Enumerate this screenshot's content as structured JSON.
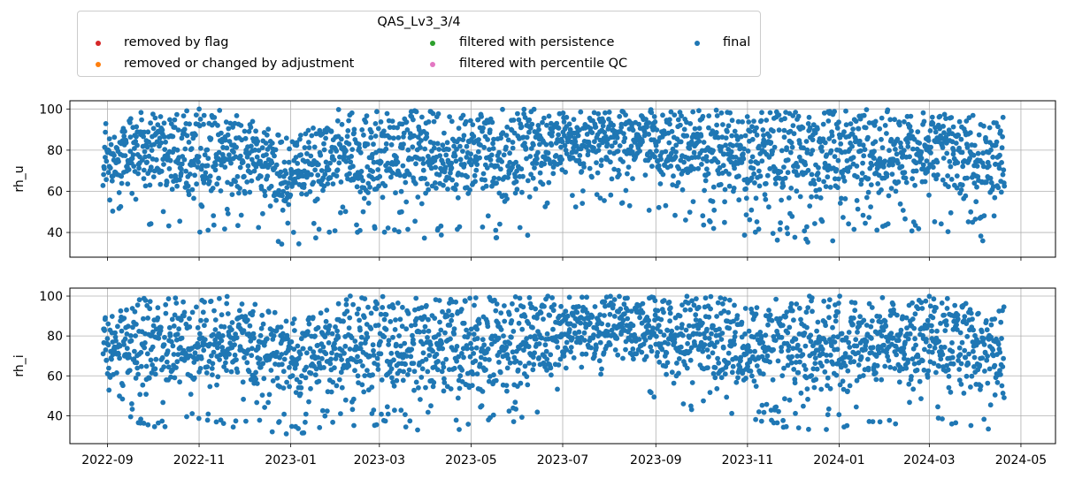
{
  "legend": {
    "title": "QAS_Lv3_3/4",
    "entries": [
      {
        "label": "removed by flag",
        "color": "#d62728"
      },
      {
        "label": "removed or changed by adjustment",
        "color": "#ff7f0e"
      },
      {
        "label": "filtered with persistence",
        "color": "#2ca02c"
      },
      {
        "label": "filtered with percentile QC",
        "color": "#e377c2"
      },
      {
        "label": "final",
        "color": "#1f77b4"
      }
    ]
  },
  "chart_data": [
    {
      "type": "scatter",
      "ylabel": "rh_u",
      "ylim": [
        28,
        104
      ],
      "yticks": [
        "40",
        "60",
        "80",
        "100"
      ],
      "xlim": [
        "2022-08-07",
        "2024-05-24"
      ],
      "xticks": [
        "2022-09",
        "2022-11",
        "2023-01",
        "2023-03",
        "2023-05",
        "2023-07",
        "2023-09",
        "2023-11",
        "2024-01",
        "2024-03",
        "2024-05"
      ],
      "xticklabels_shown": false,
      "grid": true,
      "series": [
        {
          "name": "final",
          "color": "#1f77b4",
          "x_range": [
            "2022-08-29",
            "2024-04-20"
          ],
          "envelope": [
            {
              "date": "2022-09-01",
              "min": 44,
              "max": 94
            },
            {
              "date": "2022-10-01",
              "min": 43,
              "max": 100
            },
            {
              "date": "2022-11-01",
              "min": 40,
              "max": 100
            },
            {
              "date": "2022-12-01",
              "min": 42,
              "max": 100
            },
            {
              "date": "2023-01-01",
              "min": 32,
              "max": 86
            },
            {
              "date": "2023-02-01",
              "min": 40,
              "max": 100
            },
            {
              "date": "2023-03-01",
              "min": 40,
              "max": 100
            },
            {
              "date": "2023-04-01",
              "min": 37,
              "max": 100
            },
            {
              "date": "2023-05-01",
              "min": 42,
              "max": 100
            },
            {
              "date": "2023-06-01",
              "min": 33,
              "max": 100
            },
            {
              "date": "2023-07-01",
              "min": 50,
              "max": 100
            },
            {
              "date": "2023-08-01",
              "min": 55,
              "max": 100
            },
            {
              "date": "2023-09-01",
              "min": 50,
              "max": 100
            },
            {
              "date": "2023-10-01",
              "min": 43,
              "max": 100
            },
            {
              "date": "2023-11-01",
              "min": 38,
              "max": 100
            },
            {
              "date": "2023-12-01",
              "min": 35,
              "max": 100
            },
            {
              "date": "2024-01-01",
              "min": 35,
              "max": 100
            },
            {
              "date": "2024-02-01",
              "min": 38,
              "max": 100
            },
            {
              "date": "2024-03-01",
              "min": 42,
              "max": 100
            },
            {
              "date": "2024-04-01",
              "min": 35,
              "max": 98
            }
          ]
        }
      ]
    },
    {
      "type": "scatter",
      "ylabel": "rh_i",
      "ylim": [
        26,
        104
      ],
      "yticks": [
        "40",
        "60",
        "80",
        "100"
      ],
      "xlim": [
        "2022-08-07",
        "2024-05-24"
      ],
      "xticks": [
        "2022-09",
        "2022-11",
        "2023-01",
        "2023-03",
        "2023-05",
        "2023-07",
        "2023-09",
        "2023-11",
        "2024-01",
        "2024-03",
        "2024-05"
      ],
      "xticklabels_shown": true,
      "grid": true,
      "series": [
        {
          "name": "final",
          "color": "#1f77b4",
          "x_range": [
            "2022-08-29",
            "2024-04-20"
          ],
          "envelope": [
            {
              "date": "2022-09-01",
              "min": 44,
              "max": 94
            },
            {
              "date": "2022-10-01",
              "min": 33,
              "max": 100
            },
            {
              "date": "2022-11-01",
              "min": 38,
              "max": 100
            },
            {
              "date": "2022-12-01",
              "min": 33,
              "max": 100
            },
            {
              "date": "2023-01-01",
              "min": 30,
              "max": 88
            },
            {
              "date": "2023-02-01",
              "min": 35,
              "max": 100
            },
            {
              "date": "2023-03-01",
              "min": 35,
              "max": 100
            },
            {
              "date": "2023-04-01",
              "min": 32,
              "max": 100
            },
            {
              "date": "2023-05-01",
              "min": 33,
              "max": 100
            },
            {
              "date": "2023-06-01",
              "min": 37,
              "max": 100
            },
            {
              "date": "2023-07-01",
              "min": 48,
              "max": 100
            },
            {
              "date": "2023-08-01",
              "min": 53,
              "max": 100
            },
            {
              "date": "2023-09-01",
              "min": 48,
              "max": 100
            },
            {
              "date": "2023-10-01",
              "min": 40,
              "max": 100
            },
            {
              "date": "2023-11-01",
              "min": 38,
              "max": 100
            },
            {
              "date": "2023-12-01",
              "min": 33,
              "max": 100
            },
            {
              "date": "2024-01-01",
              "min": 33,
              "max": 100
            },
            {
              "date": "2024-02-01",
              "min": 35,
              "max": 100
            },
            {
              "date": "2024-03-01",
              "min": 38,
              "max": 100
            },
            {
              "date": "2024-04-01",
              "min": 33,
              "max": 98
            }
          ]
        }
      ]
    }
  ]
}
